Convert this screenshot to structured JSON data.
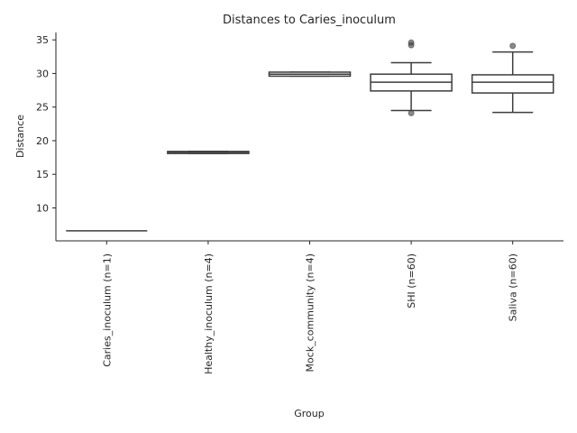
{
  "chart_data": {
    "type": "box",
    "title": "Distances to Caries_inoculum",
    "xlabel": "Group",
    "ylabel": "Distance",
    "ylim": [
      5.1,
      36.1
    ],
    "yticks": [
      10,
      15,
      20,
      25,
      30,
      35
    ],
    "grid": false,
    "categories": [
      "Caries_inoculum (n=1)",
      "Healthy_inoculum (n=4)",
      "Mock_community (n=4)",
      "SHI (n=60)",
      "Saliva (n=60)"
    ],
    "boxes": [
      {
        "whisker_low": 6.6,
        "q1": 6.6,
        "median": 6.6,
        "q3": 6.6,
        "whisker_high": 6.6,
        "outliers": []
      },
      {
        "whisker_low": 18.1,
        "q1": 18.1,
        "median": 18.3,
        "q3": 18.4,
        "whisker_high": 18.4,
        "outliers": []
      },
      {
        "whisker_low": 29.6,
        "q1": 29.6,
        "median": 29.9,
        "q3": 30.2,
        "whisker_high": 30.2,
        "outliers": []
      },
      {
        "whisker_low": 24.5,
        "q1": 27.4,
        "median": 28.7,
        "q3": 29.9,
        "whisker_high": 31.6,
        "outliers": [
          24.1,
          34.2,
          34.6
        ]
      },
      {
        "whisker_low": 24.2,
        "q1": 27.1,
        "median": 28.7,
        "q3": 29.8,
        "whisker_high": 33.2,
        "outliers": [
          34.1
        ]
      }
    ]
  }
}
